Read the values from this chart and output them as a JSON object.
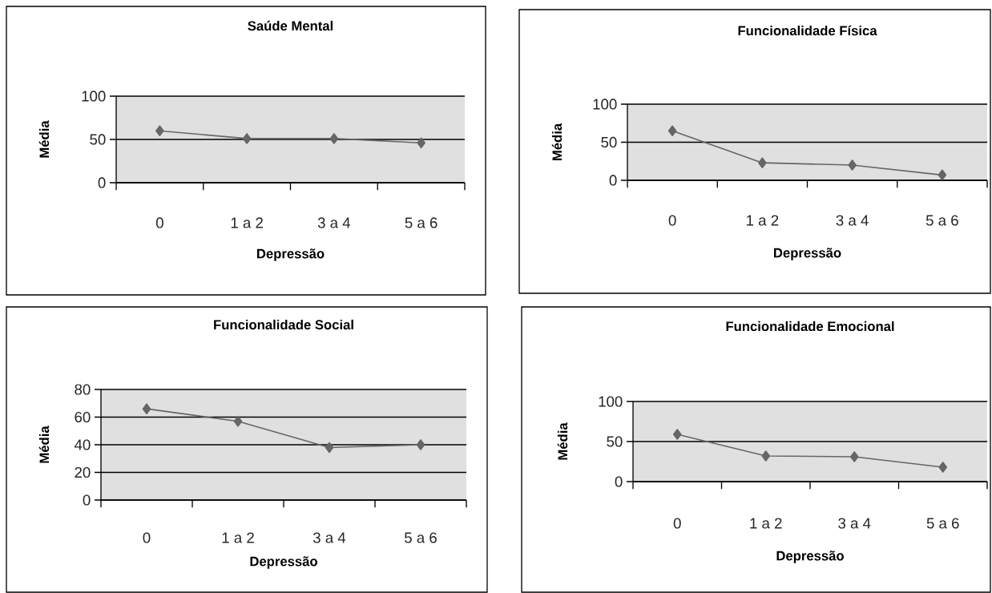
{
  "chart_data": [
    {
      "type": "line",
      "title": "Saúde Mental",
      "xlabel": "Depressão",
      "ylabel": "Média",
      "categories": [
        "0",
        "1 a 2",
        "3 a 4",
        "5 a 6"
      ],
      "series": [
        {
          "color": "#666666",
          "values": [
            60,
            51,
            51,
            46
          ]
        }
      ],
      "ylim": [
        0,
        100
      ],
      "yticks": [
        0,
        50,
        100
      ],
      "grid": "y",
      "marker": "diamond"
    },
    {
      "type": "line",
      "title": "Funcionalidade Física",
      "xlabel": "Depressão",
      "ylabel": "Média",
      "categories": [
        "0",
        "1 a 2",
        "3 a 4",
        "5 a 6"
      ],
      "series": [
        {
          "color": "#666666",
          "values": [
            65,
            23,
            20,
            7
          ]
        }
      ],
      "ylim": [
        0,
        100
      ],
      "yticks": [
        0,
        50,
        100
      ],
      "grid": "y",
      "marker": "diamond"
    },
    {
      "type": "line",
      "title": "Funcionalidade Social",
      "xlabel": "Depressão",
      "ylabel": "Média",
      "categories": [
        "0",
        "1 a 2",
        "3 a 4",
        "5 a 6"
      ],
      "series": [
        {
          "color": "#666666",
          "values": [
            66,
            57,
            38,
            40
          ]
        }
      ],
      "ylim": [
        0,
        80
      ],
      "yticks": [
        0,
        20,
        40,
        60,
        80
      ],
      "grid": "y",
      "marker": "diamond"
    },
    {
      "type": "line",
      "title": "Funcionalidade Emocional",
      "xlabel": "Depressão",
      "ylabel": "Média",
      "categories": [
        "0",
        "1 a 2",
        "3 a 4",
        "5 a 6"
      ],
      "series": [
        {
          "color": "#666666",
          "values": [
            59,
            32,
            31,
            18
          ]
        }
      ],
      "ylim": [
        0,
        100
      ],
      "yticks": [
        0,
        50,
        100
      ],
      "grid": "y",
      "marker": "diamond"
    }
  ]
}
